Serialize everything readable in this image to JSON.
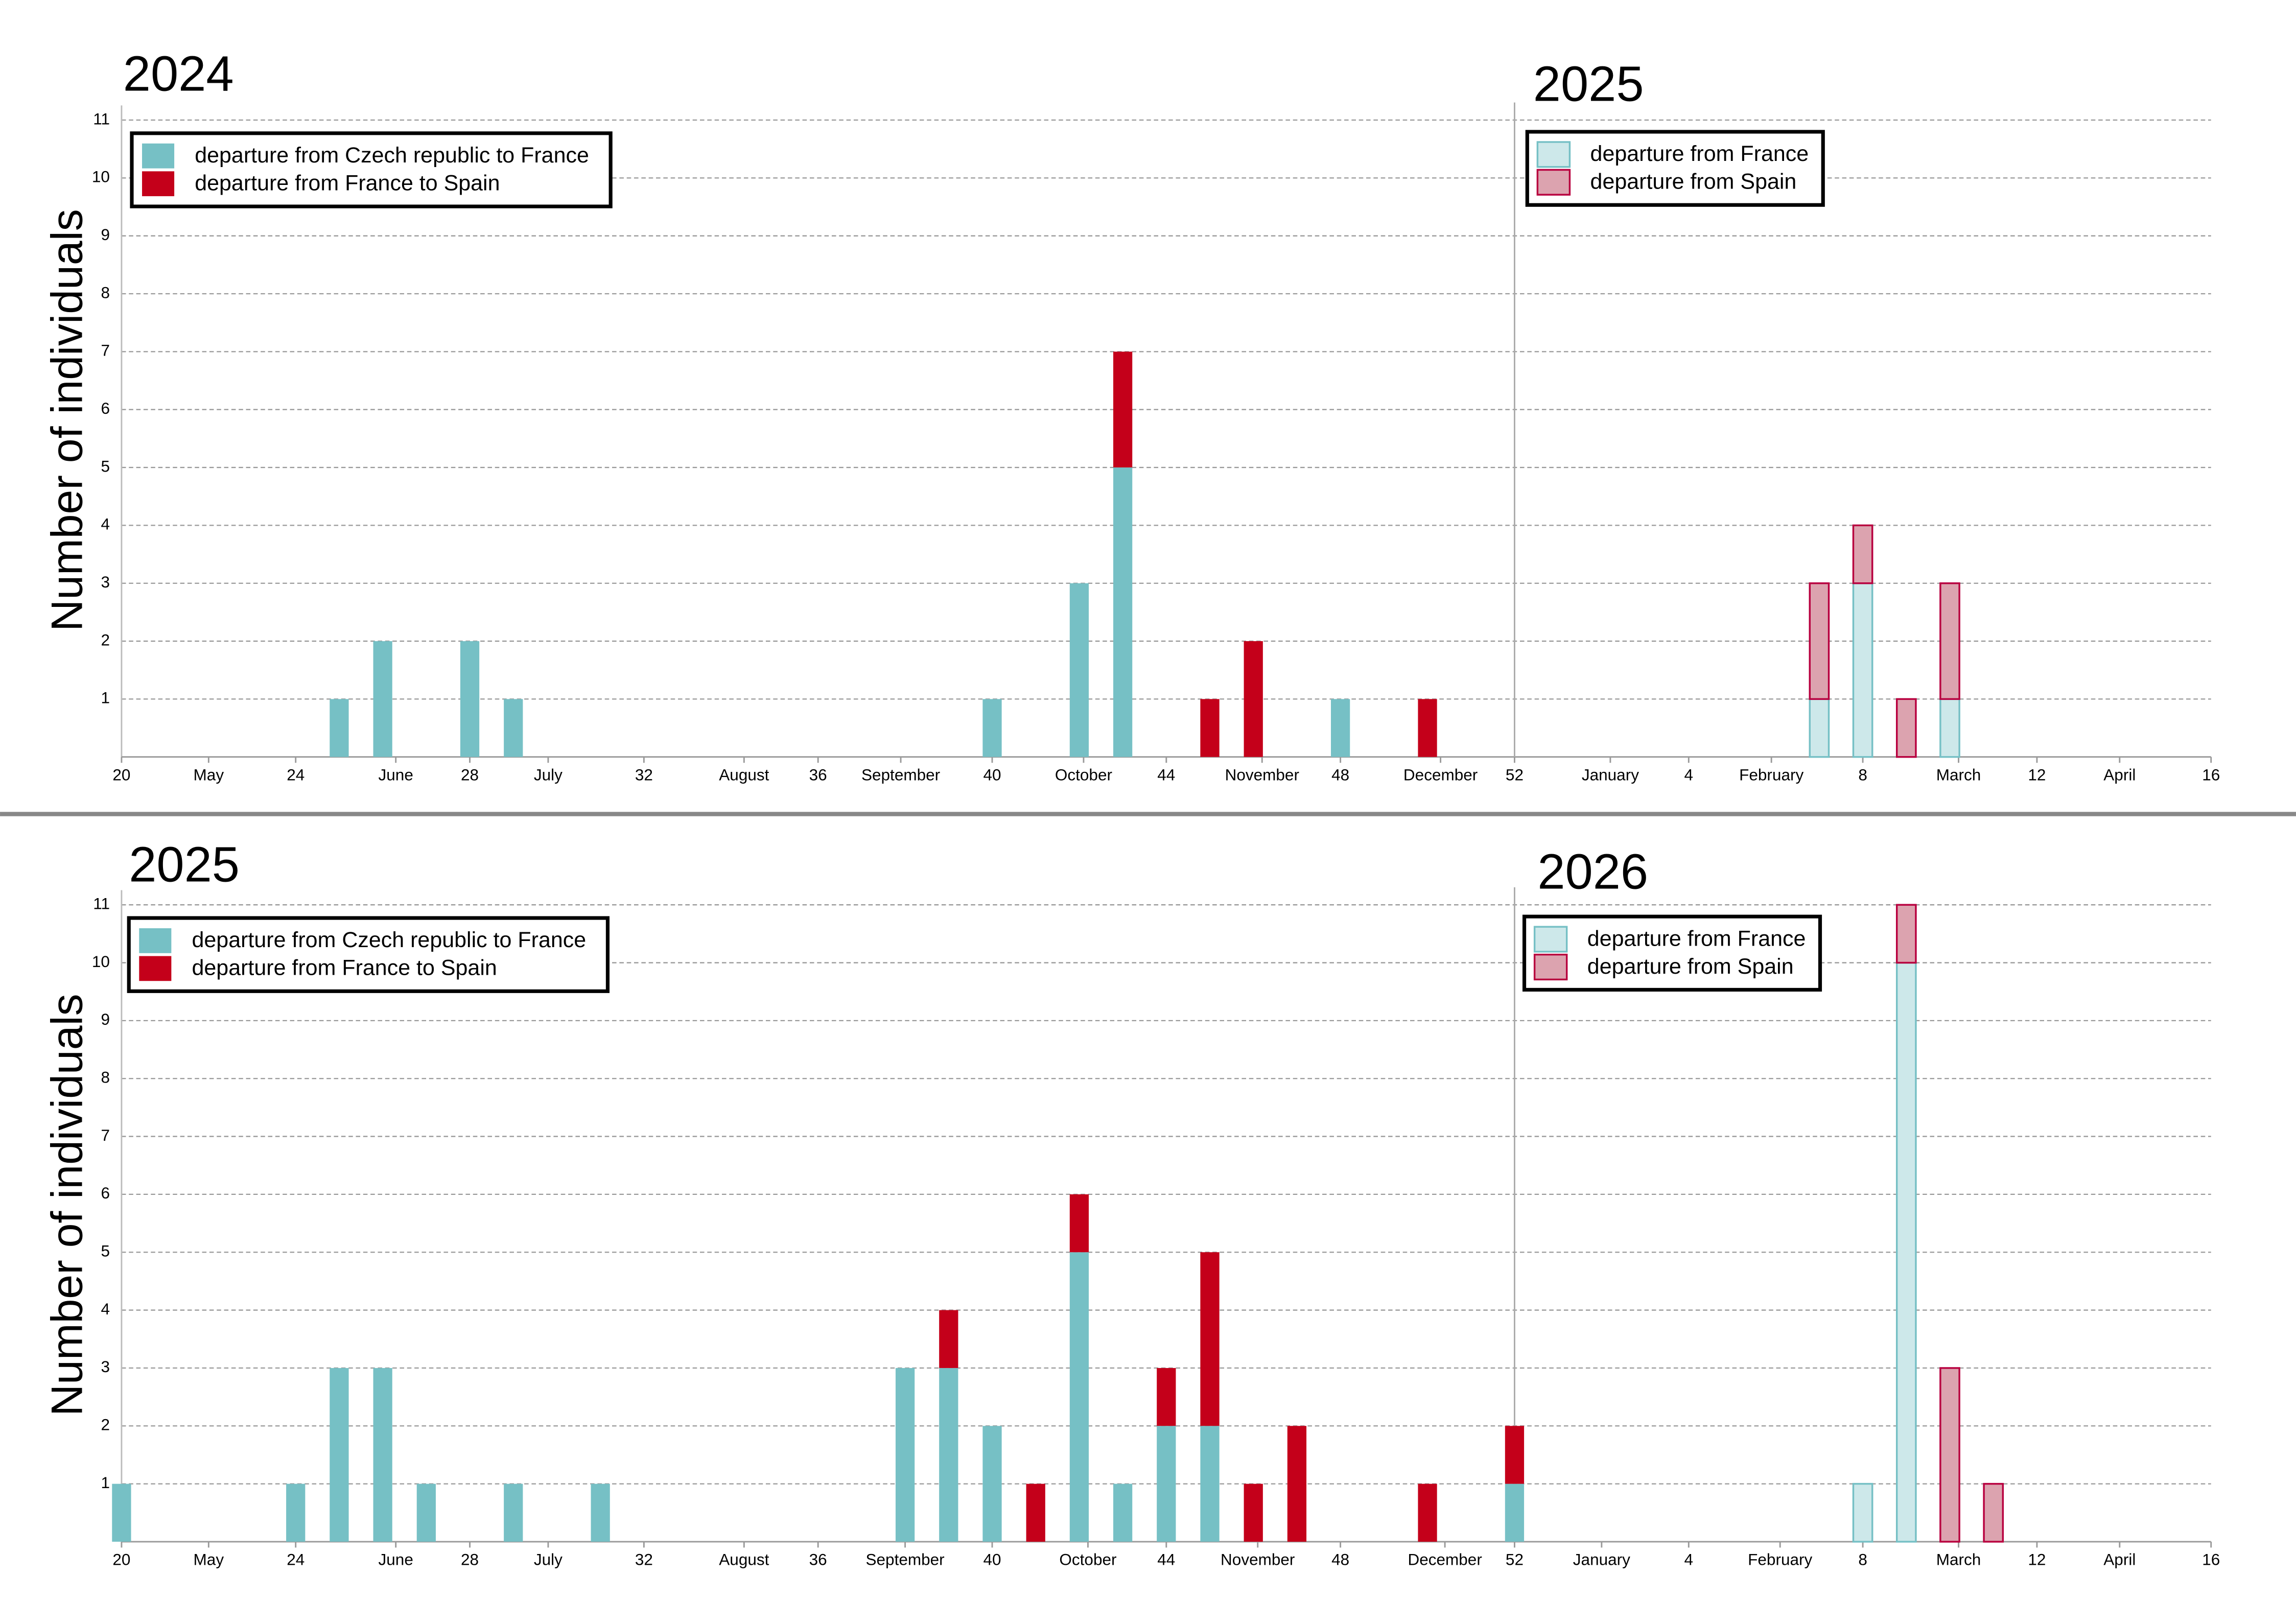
{
  "chart_data": [
    {
      "type": "bar",
      "stacked": true,
      "year_labels": [
        "2024",
        "2025"
      ],
      "year_boundary": 52,
      "ylabel": "Number of individuals",
      "grid": true,
      "xlim": [
        20,
        68
      ],
      "xticks": [
        20,
        {
          "value": 22,
          "label": "May"
        },
        24,
        {
          "value": 26.3,
          "label": "June"
        },
        28,
        {
          "value": 29.8,
          "label": "July"
        },
        32,
        {
          "value": 34.3,
          "label": "August"
        },
        36,
        {
          "value": 37.9,
          "label": "September"
        },
        40,
        {
          "value": 42.1,
          "label": "October"
        },
        44,
        {
          "value": 46.2,
          "label": "November"
        },
        48,
        {
          "value": 50.3,
          "label": "December"
        },
        52,
        {
          "value": 54.2,
          "label": "January"
        },
        {
          "value": 56,
          "label": "4"
        },
        {
          "value": 57.9,
          "label": "February"
        },
        {
          "value": 60,
          "label": "8"
        },
        {
          "value": 62.2,
          "label": "March"
        },
        {
          "value": 64,
          "label": "12"
        },
        {
          "value": 65.9,
          "label": "April"
        },
        {
          "value": 68,
          "label": "16"
        }
      ],
      "ylim": [
        0,
        11
      ],
      "yticks": [
        1,
        2,
        3,
        4,
        5,
        6,
        7,
        8,
        9,
        10,
        11
      ],
      "x": [
        25,
        26,
        28,
        29,
        40,
        42,
        43,
        45,
        46,
        48,
        50,
        59,
        60,
        61,
        62
      ],
      "series": [
        {
          "name": "departure from Czech republic to France",
          "color": "#76c0c5",
          "values": [
            1,
            2,
            2,
            1,
            1,
            3,
            5,
            null,
            null,
            1,
            null,
            null,
            null,
            null,
            null
          ]
        },
        {
          "name": "departure from France to Spain",
          "color": "#c4001a",
          "values": [
            null,
            null,
            null,
            null,
            null,
            null,
            2,
            1,
            2,
            null,
            1,
            null,
            null,
            null,
            null
          ]
        },
        {
          "name": "departure from France",
          "color": "#cde8ea",
          "edgecolor": "#76c0c5",
          "values": [
            null,
            null,
            null,
            null,
            null,
            null,
            null,
            null,
            null,
            null,
            null,
            1,
            3,
            null,
            1
          ]
        },
        {
          "name": "departure from Spain",
          "color": "#dca3af",
          "edgecolor": "#b8003f",
          "values": [
            null,
            null,
            null,
            null,
            null,
            null,
            null,
            null,
            null,
            null,
            null,
            2,
            1,
            1,
            2
          ]
        }
      ]
    },
    {
      "type": "bar",
      "stacked": true,
      "year_labels": [
        "2025",
        "2026"
      ],
      "year_boundary": 52,
      "ylabel": "Number of individuals",
      "grid": true,
      "xlim": [
        20,
        68
      ],
      "xticks": [
        20,
        {
          "value": 22,
          "label": "May"
        },
        24,
        {
          "value": 26.3,
          "label": "June"
        },
        28,
        {
          "value": 29.8,
          "label": "July"
        },
        32,
        {
          "value": 34.3,
          "label": "August"
        },
        36,
        {
          "value": 38,
          "label": "September"
        },
        40,
        {
          "value": 42.2,
          "label": "October"
        },
        44,
        {
          "value": 46.1,
          "label": "November"
        },
        48,
        {
          "value": 50.4,
          "label": "December"
        },
        52,
        {
          "value": 54,
          "label": "January"
        },
        {
          "value": 56,
          "label": "4"
        },
        {
          "value": 58.1,
          "label": "February"
        },
        {
          "value": 60,
          "label": "8"
        },
        {
          "value": 62.2,
          "label": "March"
        },
        {
          "value": 64,
          "label": "12"
        },
        {
          "value": 65.9,
          "label": "April"
        },
        {
          "value": 68,
          "label": "16"
        }
      ],
      "ylim": [
        0,
        11
      ],
      "yticks": [
        1,
        2,
        3,
        4,
        5,
        6,
        7,
        8,
        9,
        10,
        11
      ],
      "x": [
        20,
        24,
        25,
        26,
        27,
        29,
        31,
        38,
        39,
        40,
        41,
        42,
        43,
        44,
        45,
        46,
        47,
        50,
        52,
        60,
        61,
        62,
        63
      ],
      "series": [
        {
          "name": "departure from Czech republic to France",
          "color": "#76c0c5",
          "values": [
            1,
            1,
            3,
            3,
            1,
            1,
            1,
            3,
            3,
            2,
            null,
            5,
            1,
            2,
            2,
            null,
            null,
            null,
            1,
            null,
            null,
            null,
            null
          ]
        },
        {
          "name": "departure from France to Spain",
          "color": "#c4001a",
          "values": [
            null,
            null,
            null,
            null,
            null,
            null,
            null,
            null,
            1,
            null,
            1,
            1,
            null,
            1,
            3,
            1,
            2,
            1,
            1,
            null,
            null,
            null,
            null
          ]
        },
        {
          "name": "departure from France",
          "color": "#cde8ea",
          "edgecolor": "#76c0c5",
          "values": [
            null,
            null,
            null,
            null,
            null,
            null,
            null,
            null,
            null,
            null,
            null,
            null,
            null,
            null,
            null,
            null,
            null,
            null,
            null,
            1,
            10,
            null,
            null
          ]
        },
        {
          "name": "departure from Spain",
          "color": "#dca3af",
          "edgecolor": "#b8003f",
          "values": [
            null,
            null,
            null,
            null,
            null,
            null,
            null,
            null,
            null,
            null,
            null,
            null,
            null,
            null,
            null,
            null,
            null,
            null,
            null,
            null,
            1,
            3,
            1
          ]
        }
      ]
    }
  ]
}
